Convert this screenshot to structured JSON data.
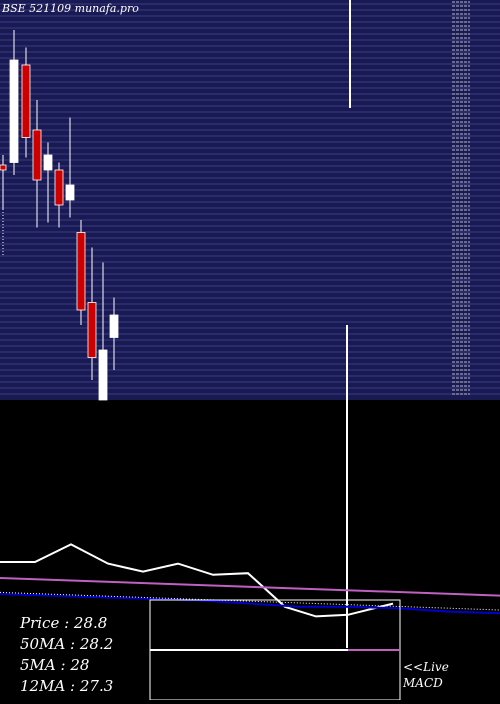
{
  "title": "BSE 521109 munafa.pro",
  "stats": {
    "price": "Price   : 28.8",
    "ma50": "50MA : 28.2",
    "ma5": "5MA : 28",
    "ma12": "12MA : 27.3"
  },
  "live_label": "<<Live",
  "macd_label": "MACD",
  "colors": {
    "price_panel_bg": "#1a1a52",
    "grid_line": "#3a3a8a",
    "bull_candle": "#ffffff",
    "bear_candle": "#cc0000",
    "ma_line": "#ffffff",
    "ma_long": "#c060c0",
    "ma_other": "#0000cc",
    "background": "#000000"
  },
  "chart_data": {
    "type": "candlestick",
    "price_panel": {
      "ylim": [
        20,
        36
      ],
      "candles": [
        {
          "open": 29.2,
          "high": 29.8,
          "low": 27.6,
          "close": 29.4,
          "color": "bear"
        },
        {
          "open": 29.5,
          "high": 34.8,
          "low": 29.0,
          "close": 33.6,
          "color": "bull"
        },
        {
          "open": 33.4,
          "high": 34.1,
          "low": 29.7,
          "close": 30.5,
          "color": "bear"
        },
        {
          "open": 30.8,
          "high": 32.0,
          "low": 26.9,
          "close": 28.8,
          "color": "bear"
        },
        {
          "open": 29.2,
          "high": 30.3,
          "low": 27.1,
          "close": 29.8,
          "color": "bull"
        },
        {
          "open": 29.2,
          "high": 29.5,
          "low": 26.9,
          "close": 27.8,
          "color": "bear"
        },
        {
          "open": 28.0,
          "high": 31.3,
          "low": 27.3,
          "close": 28.6,
          "color": "bull"
        },
        {
          "open": 26.7,
          "high": 27.2,
          "low": 23.0,
          "close": 23.6,
          "color": "bear"
        },
        {
          "open": 23.9,
          "high": 26.1,
          "low": 20.8,
          "close": 21.7,
          "color": "bear"
        },
        {
          "open": 20.0,
          "high": 25.5,
          "low": 20.0,
          "close": 22.0,
          "color": "bull"
        },
        {
          "open": 22.5,
          "high": 24.1,
          "low": 21.2,
          "close": 23.4,
          "color": "bull"
        }
      ]
    },
    "macd_panel": {
      "ylim": [
        0,
        10
      ],
      "series": [
        {
          "color": "#ffffff",
          "x": [
            0,
            35,
            71,
            108,
            143,
            178,
            213,
            248,
            285,
            316,
            348,
            393
          ],
          "values": [
            8.0,
            8.0,
            9.1,
            7.9,
            7.4,
            7.9,
            7.2,
            7.3,
            5.2,
            4.6,
            4.7,
            5.4
          ]
        },
        {
          "color": "#c060c0",
          "x": [
            0,
            500
          ],
          "values": [
            7.0,
            5.9
          ]
        },
        {
          "color": "#0000cc",
          "x": [
            0,
            100,
            200,
            300,
            350,
            400,
            450,
            500
          ],
          "values": [
            6.0,
            5.8,
            5.6,
            5.2,
            5.2,
            5.1,
            4.9,
            4.8
          ]
        },
        {
          "color": "#ffffff",
          "x": [
            0,
            500
          ],
          "values": [
            6.1,
            5.0
          ],
          "style": "dotted"
        }
      ]
    }
  }
}
